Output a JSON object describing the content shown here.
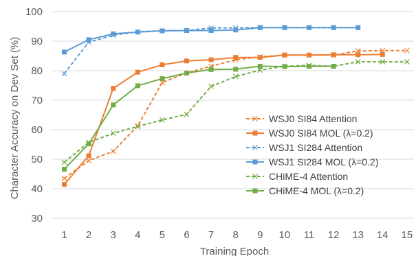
{
  "chart_data": {
    "type": "line",
    "title": "",
    "xlabel": "Training Epoch",
    "ylabel": "Character Accuracy on Dev Set (%)",
    "ylim": [
      30,
      100
    ],
    "y_ticks": [
      30,
      40,
      50,
      60,
      70,
      80,
      90,
      100
    ],
    "x_ticks": [
      1,
      2,
      3,
      4,
      5,
      6,
      7,
      8,
      9,
      10,
      11,
      12,
      13,
      14,
      15
    ],
    "grid": "horizontal",
    "legend_position": "lower-right",
    "series": [
      {
        "name": "WSJ0 SI84 Attention",
        "style": "dashed",
        "marker": "x",
        "color": "#ED7D31",
        "x": [
          1,
          2,
          3,
          4,
          5,
          6,
          7,
          8,
          9,
          10,
          11,
          12,
          13,
          14,
          15
        ],
        "values": [
          43.5,
          49.5,
          52.7,
          61.3,
          76.0,
          79.2,
          81.5,
          83.7,
          84.7,
          85.3,
          85.3,
          85.3,
          86.7,
          86.8,
          86.8
        ]
      },
      {
        "name": "WSJ0 SI84 MOL (λ=0.2)",
        "style": "solid",
        "marker": "square",
        "color": "#ED7D31",
        "x": [
          1,
          2,
          3,
          4,
          5,
          6,
          7,
          8,
          9,
          10,
          11,
          12,
          13,
          14
        ],
        "values": [
          41.5,
          51.2,
          74.0,
          79.5,
          82.0,
          83.3,
          83.7,
          84.5,
          84.5,
          85.3,
          85.3,
          85.4,
          85.4,
          85.5
        ]
      },
      {
        "name": "WSJ1 SI284 Attention",
        "style": "dashed",
        "marker": "x",
        "color": "#5B9BD5",
        "x": [
          1,
          2,
          3,
          4,
          5,
          6,
          7,
          8,
          9,
          10,
          11,
          12,
          13
        ],
        "values": [
          79.0,
          89.7,
          92.0,
          93.2,
          93.5,
          93.6,
          94.5,
          94.5,
          94.6,
          94.6,
          94.6,
          94.6,
          94.6
        ]
      },
      {
        "name": "WSJ1 SI284 MOL (λ=0.2)",
        "style": "solid",
        "marker": "square",
        "color": "#5B9BD5",
        "x": [
          1,
          2,
          3,
          4,
          5,
          6,
          7,
          8,
          9,
          10,
          11,
          12,
          13
        ],
        "values": [
          86.3,
          90.5,
          92.5,
          93.1,
          93.5,
          93.6,
          93.6,
          93.8,
          94.6,
          94.6,
          94.6,
          94.6,
          94.6
        ]
      },
      {
        "name": "CHiME-4 Attention",
        "style": "dashed",
        "marker": "x",
        "color": "#70AD47",
        "x": [
          1,
          2,
          3,
          4,
          5,
          6,
          7,
          8,
          9,
          10,
          11,
          12,
          13,
          14,
          15
        ],
        "values": [
          49.0,
          55.7,
          58.8,
          61.1,
          63.3,
          65.2,
          74.7,
          78.0,
          80.2,
          81.5,
          81.8,
          81.5,
          83.0,
          83.0,
          83.0
        ]
      },
      {
        "name": "CHiME-4 MOL (λ=0.2)",
        "style": "solid",
        "marker": "square",
        "color": "#70AD47",
        "x": [
          1,
          2,
          3,
          4,
          5,
          6,
          7,
          8,
          9,
          10,
          11,
          12
        ],
        "values": [
          46.6,
          55.2,
          68.4,
          74.9,
          77.3,
          79.2,
          80.4,
          80.5,
          81.5,
          81.4,
          81.5,
          81.5
        ]
      }
    ]
  }
}
